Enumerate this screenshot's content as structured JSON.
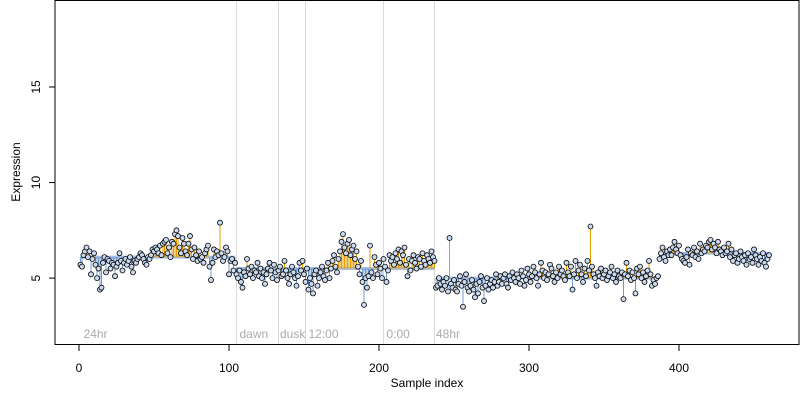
{
  "chart_data": {
    "type": "scatter",
    "title": "",
    "xlabel": "Sample index",
    "ylabel": "Expression",
    "xlim": [
      -16,
      480
    ],
    "ylim": [
      1.5,
      19.5
    ],
    "x_ticks": [
      0,
      100,
      200,
      300,
      400
    ],
    "y_ticks": [
      5,
      10,
      15
    ],
    "grid": false,
    "colors": {
      "above": "#e69f00",
      "below": "#6f9bd1",
      "fitted": "#a7bfe3",
      "point_fill": "#c9d9f0",
      "region_line": "#d9d9d9",
      "annotation": "#aaaaaa"
    },
    "annotations": [
      {
        "label": "24hr",
        "x": 3
      },
      {
        "label": "dawn",
        "x": 107
      },
      {
        "label": "dusk",
        "x": 134
      },
      {
        "label": "12:00",
        "x": 153
      },
      {
        "label": "0:00",
        "x": 205
      },
      {
        "label": "48hr",
        "x": 238
      }
    ],
    "region_boundaries": [
      105,
      133,
      151,
      203,
      237
    ],
    "segments": [
      {
        "x_start": 1,
        "x_end": 104,
        "values": [
          5.7,
          5.6,
          6.2,
          6.4,
          6.6,
          6.1,
          6.4,
          5.2,
          6.0,
          6.3,
          5.7,
          5.0,
          5.5,
          4.4,
          4.5,
          5.8,
          6.1,
          5.3,
          6.0,
          5.9,
          5.5,
          5.8,
          5.7,
          5.1,
          5.6,
          5.8,
          6.3,
          5.9,
          5.4,
          5.8,
          6.0,
          5.7,
          5.9,
          6.1,
          5.6,
          5.3,
          5.9,
          5.8,
          6.0,
          6.1,
          6.3,
          6.2,
          6.0,
          5.8,
          5.7,
          6.1,
          6.0,
          6.2,
          6.5,
          6.4,
          6.6,
          6.5,
          6.3,
          6.7,
          6.2,
          6.8,
          6.9,
          7.0,
          6.3,
          6.6,
          6.1,
          6.9,
          6.8,
          7.3,
          7.5,
          7.2,
          6.6,
          6.3,
          7.1,
          6.8,
          6.4,
          6.2,
          6.8,
          7.2,
          6.5,
          6.0,
          6.6,
          6.2,
          5.9,
          6.4,
          6.0,
          6.1,
          5.8,
          6.3,
          6.5,
          6.7,
          5.6,
          4.9,
          5.8,
          6.5,
          6.1,
          6.4,
          6.2,
          7.9,
          6.3,
          5.9,
          6.1,
          6.6,
          6.4,
          5.2,
          5.9,
          6.0,
          5.4,
          5.8
        ]
      },
      {
        "x_start": 105,
        "x_end": 237,
        "values": [
          5.2,
          5.0,
          5.4,
          4.8,
          4.5,
          5.3,
          5.1,
          6.0,
          5.5,
          5.2,
          5.6,
          5.0,
          5.4,
          5.3,
          5.8,
          5.1,
          5.5,
          5.0,
          5.3,
          4.7,
          5.2,
          5.5,
          5.8,
          5.4,
          5.0,
          5.7,
          5.3,
          4.9,
          5.4,
          5.6,
          5.1,
          5.2,
          5.9,
          5.4,
          5.0,
          4.7,
          5.2,
          5.6,
          5.3,
          5.0,
          4.6,
          5.1,
          5.8,
          5.4,
          5.9,
          5.2,
          4.8,
          5.5,
          4.4,
          5.0,
          4.7,
          4.2,
          5.2,
          5.4,
          4.6,
          5.0,
          5.3,
          5.6,
          5.1,
          4.9,
          5.4,
          5.8,
          5.0,
          5.5,
          5.9,
          6.2,
          5.6,
          5.3,
          6.0,
          6.4,
          6.9,
          7.3,
          6.6,
          6.3,
          6.8,
          7.0,
          6.2,
          6.5,
          6.7,
          6.0,
          6.4,
          5.6,
          5.2,
          5.9,
          4.8,
          3.6,
          5.0,
          4.5,
          5.1,
          6.7,
          5.3,
          5.0,
          6.1,
          5.7,
          5.2,
          5.8,
          5.5,
          5.0,
          6.0,
          5.6,
          4.8,
          5.4,
          6.2,
          5.9,
          6.1,
          5.7,
          6.3,
          6.0,
          6.5,
          5.8,
          6.4,
          6.2,
          6.6,
          5.7,
          5.1,
          6.0,
          5.4,
          5.9,
          6.2,
          5.8,
          5.5,
          6.1,
          6.0,
          5.6,
          6.3,
          5.9,
          5.7,
          6.2,
          6.0,
          5.8,
          6.4,
          6.1,
          5.9
        ]
      },
      {
        "x_start": 238,
        "x_end": 386,
        "values": [
          4.5,
          4.6,
          5.0,
          4.7,
          4.4,
          4.8,
          4.6,
          5.0,
          4.3,
          7.1,
          4.7,
          4.5,
          4.9,
          4.4,
          4.3,
          4.7,
          5.1,
          4.6,
          3.5,
          4.8,
          5.2,
          4.5,
          4.3,
          4.6,
          4.9,
          4.4,
          4.0,
          4.7,
          4.2,
          4.8,
          5.1,
          4.5,
          3.8,
          4.6,
          5.0,
          4.4,
          4.7,
          4.9,
          4.5,
          4.8,
          5.2,
          4.6,
          4.8,
          5.1,
          4.7,
          5.0,
          5.2,
          4.7,
          4.5,
          5.1,
          4.9,
          5.3,
          5.0,
          4.8,
          5.2,
          5.0,
          4.7,
          5.4,
          5.1,
          4.6,
          4.9,
          5.5,
          5.2,
          4.8,
          5.1,
          5.6,
          5.3,
          5.0,
          4.6,
          5.2,
          5.8,
          5.4,
          5.0,
          5.3,
          4.9,
          5.2,
          5.7,
          5.5,
          5.1,
          4.8,
          5.3,
          5.0,
          5.6,
          5.2,
          5.4,
          5.1,
          4.9,
          5.8,
          5.3,
          5.1,
          5.6,
          4.4,
          5.2,
          5.9,
          5.0,
          5.4,
          5.7,
          5.2,
          4.8,
          5.5,
          5.1,
          5.9,
          5.4,
          7.7,
          5.6,
          5.2,
          5.0,
          4.6,
          5.3,
          5.1,
          5.5,
          5.0,
          5.2,
          5.4,
          4.9,
          5.1,
          5.3,
          5.6,
          5.0,
          5.2,
          4.8,
          5.4,
          5.1,
          5.0,
          5.3,
          3.9,
          5.2,
          5.8,
          5.1,
          5.4,
          4.9,
          5.3,
          5.0,
          4.2,
          5.5,
          5.2,
          5.6,
          5.0,
          5.3,
          4.8,
          5.1,
          5.4,
          5.9,
          5.2,
          4.6,
          4.9,
          4.7,
          5.0,
          5.1
        ]
      },
      {
        "x_start": 387,
        "x_end": 460,
        "values": [
          6.0,
          6.3,
          6.6,
          6.1,
          5.9,
          6.4,
          6.2,
          6.5,
          6.2,
          6.6,
          6.9,
          6.5,
          6.3,
          6.7,
          6.2,
          6.0,
          5.9,
          5.8,
          6.1,
          6.5,
          5.7,
          6.3,
          6.2,
          6.6,
          6.1,
          6.4,
          6.0,
          6.8,
          6.3,
          6.5,
          6.4,
          6.7,
          6.6,
          6.9,
          7.0,
          6.5,
          6.8,
          6.6,
          6.3,
          6.9,
          6.5,
          6.4,
          6.2,
          6.6,
          6.3,
          6.4,
          6.8,
          6.1,
          6.5,
          5.9,
          6.2,
          6.3,
          5.8,
          6.0,
          6.4,
          6.1,
          5.9,
          6.2,
          5.7,
          6.3,
          6.0,
          6.1,
          5.8,
          6.5,
          6.2,
          6.0,
          5.7,
          6.1,
          5.9,
          6.3,
          5.8,
          5.6,
          6.0,
          6.2
        ]
      }
    ]
  }
}
